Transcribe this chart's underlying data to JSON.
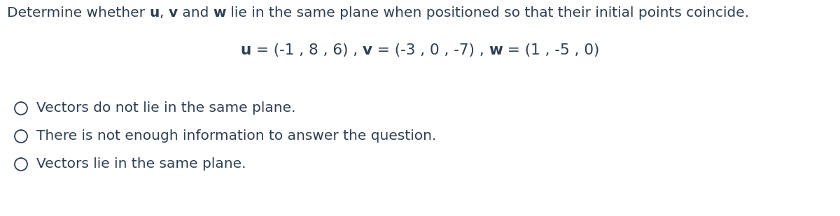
{
  "background_color": "#ffffff",
  "text_color": "#2e3f52",
  "title_segments": [
    [
      "Determine whether ",
      false
    ],
    [
      "u",
      true
    ],
    [
      ", ",
      false
    ],
    [
      "v",
      true
    ],
    [
      " and ",
      false
    ],
    [
      "w",
      true
    ],
    [
      " lie in the same plane when positioned so that their initial points coincide.",
      false
    ]
  ],
  "eq_segments": [
    [
      "u",
      true
    ],
    [
      " = (-1 , 8 , 6) , ",
      false
    ],
    [
      "v",
      true
    ],
    [
      " = (-3 , 0 , -7) , ",
      false
    ],
    [
      "w",
      true
    ],
    [
      " = (1 , -5 , 0)",
      false
    ]
  ],
  "options": [
    "Vectors do not lie in the same plane.",
    "There is not enough information to answer the question.",
    "Vectors lie in the same plane."
  ],
  "font_size_title": 14.5,
  "font_size_equation": 15.5,
  "font_size_options": 14.5
}
